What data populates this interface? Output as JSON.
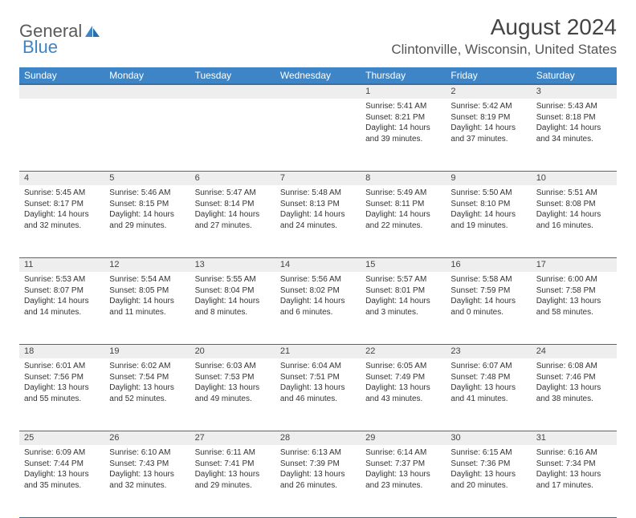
{
  "logo": {
    "text1": "General",
    "text2": "Blue"
  },
  "title": "August 2024",
  "location": "Clintonville, Wisconsin, United States",
  "colors": {
    "header_bg": "#3d85c6",
    "header_border": "#356fa3",
    "daynum_bg": "#eeeeee",
    "text": "#333333",
    "title_text": "#444444"
  },
  "weekdays": [
    "Sunday",
    "Monday",
    "Tuesday",
    "Wednesday",
    "Thursday",
    "Friday",
    "Saturday"
  ],
  "weeks": [
    [
      null,
      null,
      null,
      null,
      {
        "n": "1",
        "sr": "5:41 AM",
        "ss": "8:21 PM",
        "dh": "14",
        "dm": "39"
      },
      {
        "n": "2",
        "sr": "5:42 AM",
        "ss": "8:19 PM",
        "dh": "14",
        "dm": "37"
      },
      {
        "n": "3",
        "sr": "5:43 AM",
        "ss": "8:18 PM",
        "dh": "14",
        "dm": "34"
      }
    ],
    [
      {
        "n": "4",
        "sr": "5:45 AM",
        "ss": "8:17 PM",
        "dh": "14",
        "dm": "32"
      },
      {
        "n": "5",
        "sr": "5:46 AM",
        "ss": "8:15 PM",
        "dh": "14",
        "dm": "29"
      },
      {
        "n": "6",
        "sr": "5:47 AM",
        "ss": "8:14 PM",
        "dh": "14",
        "dm": "27"
      },
      {
        "n": "7",
        "sr": "5:48 AM",
        "ss": "8:13 PM",
        "dh": "14",
        "dm": "24"
      },
      {
        "n": "8",
        "sr": "5:49 AM",
        "ss": "8:11 PM",
        "dh": "14",
        "dm": "22"
      },
      {
        "n": "9",
        "sr": "5:50 AM",
        "ss": "8:10 PM",
        "dh": "14",
        "dm": "19"
      },
      {
        "n": "10",
        "sr": "5:51 AM",
        "ss": "8:08 PM",
        "dh": "14",
        "dm": "16"
      }
    ],
    [
      {
        "n": "11",
        "sr": "5:53 AM",
        "ss": "8:07 PM",
        "dh": "14",
        "dm": "14"
      },
      {
        "n": "12",
        "sr": "5:54 AM",
        "ss": "8:05 PM",
        "dh": "14",
        "dm": "11"
      },
      {
        "n": "13",
        "sr": "5:55 AM",
        "ss": "8:04 PM",
        "dh": "14",
        "dm": "8"
      },
      {
        "n": "14",
        "sr": "5:56 AM",
        "ss": "8:02 PM",
        "dh": "14",
        "dm": "6"
      },
      {
        "n": "15",
        "sr": "5:57 AM",
        "ss": "8:01 PM",
        "dh": "14",
        "dm": "3"
      },
      {
        "n": "16",
        "sr": "5:58 AM",
        "ss": "7:59 PM",
        "dh": "14",
        "dm": "0"
      },
      {
        "n": "17",
        "sr": "6:00 AM",
        "ss": "7:58 PM",
        "dh": "13",
        "dm": "58"
      }
    ],
    [
      {
        "n": "18",
        "sr": "6:01 AM",
        "ss": "7:56 PM",
        "dh": "13",
        "dm": "55"
      },
      {
        "n": "19",
        "sr": "6:02 AM",
        "ss": "7:54 PM",
        "dh": "13",
        "dm": "52"
      },
      {
        "n": "20",
        "sr": "6:03 AM",
        "ss": "7:53 PM",
        "dh": "13",
        "dm": "49"
      },
      {
        "n": "21",
        "sr": "6:04 AM",
        "ss": "7:51 PM",
        "dh": "13",
        "dm": "46"
      },
      {
        "n": "22",
        "sr": "6:05 AM",
        "ss": "7:49 PM",
        "dh": "13",
        "dm": "43"
      },
      {
        "n": "23",
        "sr": "6:07 AM",
        "ss": "7:48 PM",
        "dh": "13",
        "dm": "41"
      },
      {
        "n": "24",
        "sr": "6:08 AM",
        "ss": "7:46 PM",
        "dh": "13",
        "dm": "38"
      }
    ],
    [
      {
        "n": "25",
        "sr": "6:09 AM",
        "ss": "7:44 PM",
        "dh": "13",
        "dm": "35"
      },
      {
        "n": "26",
        "sr": "6:10 AM",
        "ss": "7:43 PM",
        "dh": "13",
        "dm": "32"
      },
      {
        "n": "27",
        "sr": "6:11 AM",
        "ss": "7:41 PM",
        "dh": "13",
        "dm": "29"
      },
      {
        "n": "28",
        "sr": "6:13 AM",
        "ss": "7:39 PM",
        "dh": "13",
        "dm": "26"
      },
      {
        "n": "29",
        "sr": "6:14 AM",
        "ss": "7:37 PM",
        "dh": "13",
        "dm": "23"
      },
      {
        "n": "30",
        "sr": "6:15 AM",
        "ss": "7:36 PM",
        "dh": "13",
        "dm": "20"
      },
      {
        "n": "31",
        "sr": "6:16 AM",
        "ss": "7:34 PM",
        "dh": "13",
        "dm": "17"
      }
    ]
  ],
  "labels": {
    "sunrise": "Sunrise:",
    "sunset": "Sunset:",
    "daylight": "Daylight:",
    "hours": "hours",
    "and": "and",
    "minutes": "minutes."
  }
}
